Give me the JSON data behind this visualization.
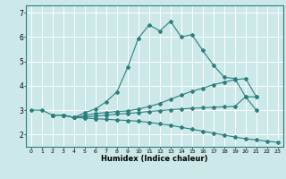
{
  "xlabel": "Humidex (Indice chaleur)",
  "bg_color": "#cce8e8",
  "line_color": "#2a7f7f",
  "grid_color": "#ffffff",
  "xlim": [
    -0.5,
    23.5
  ],
  "ylim": [
    1.5,
    7.3
  ],
  "xticks": [
    0,
    1,
    2,
    3,
    4,
    5,
    6,
    7,
    8,
    9,
    10,
    11,
    12,
    13,
    14,
    15,
    16,
    17,
    18,
    19,
    20,
    21,
    22,
    23
  ],
  "yticks": [
    2,
    3,
    4,
    5,
    6,
    7
  ],
  "series": [
    {
      "x": [
        0,
        1,
        2,
        3,
        4,
        5,
        6,
        7,
        8,
        9,
        10,
        11,
        12,
        13,
        14,
        15,
        16,
        17,
        18,
        19,
        20,
        21
      ],
      "y": [
        3.0,
        3.0,
        2.8,
        2.8,
        2.7,
        2.9,
        3.05,
        3.35,
        3.75,
        4.75,
        5.95,
        6.5,
        6.25,
        6.65,
        6.0,
        6.1,
        5.45,
        4.85,
        4.35,
        4.3,
        3.55,
        3.0
      ]
    },
    {
      "x": [
        2,
        3,
        4,
        5,
        6,
        7,
        8,
        9,
        10,
        11,
        12,
        13,
        14,
        15,
        16,
        17,
        18,
        19,
        20,
        21
      ],
      "y": [
        2.8,
        2.8,
        2.7,
        2.78,
        2.87,
        2.9,
        2.95,
        2.97,
        3.05,
        3.15,
        3.28,
        3.45,
        3.62,
        3.78,
        3.9,
        4.05,
        4.15,
        4.25,
        4.3,
        3.55
      ]
    },
    {
      "x": [
        2,
        3,
        4,
        5,
        6,
        7,
        8,
        9,
        10,
        11,
        12,
        13,
        14,
        15,
        16,
        17,
        18,
        19,
        20,
        21,
        22,
        23
      ],
      "y": [
        2.8,
        2.8,
        2.7,
        2.68,
        2.65,
        2.63,
        2.6,
        2.58,
        2.55,
        2.5,
        2.44,
        2.38,
        2.3,
        2.22,
        2.14,
        2.06,
        1.98,
        1.9,
        1.83,
        1.78,
        1.73,
        1.68
      ]
    },
    {
      "x": [
        2,
        3,
        4,
        5,
        6,
        7,
        8,
        9,
        10,
        11,
        12,
        13,
        14,
        15,
        16,
        17,
        18,
        19,
        20,
        21
      ],
      "y": [
        2.8,
        2.8,
        2.7,
        2.72,
        2.76,
        2.8,
        2.84,
        2.87,
        2.9,
        2.95,
        2.98,
        3.02,
        3.05,
        3.08,
        3.1,
        3.12,
        3.14,
        3.16,
        3.55,
        3.55
      ]
    }
  ]
}
